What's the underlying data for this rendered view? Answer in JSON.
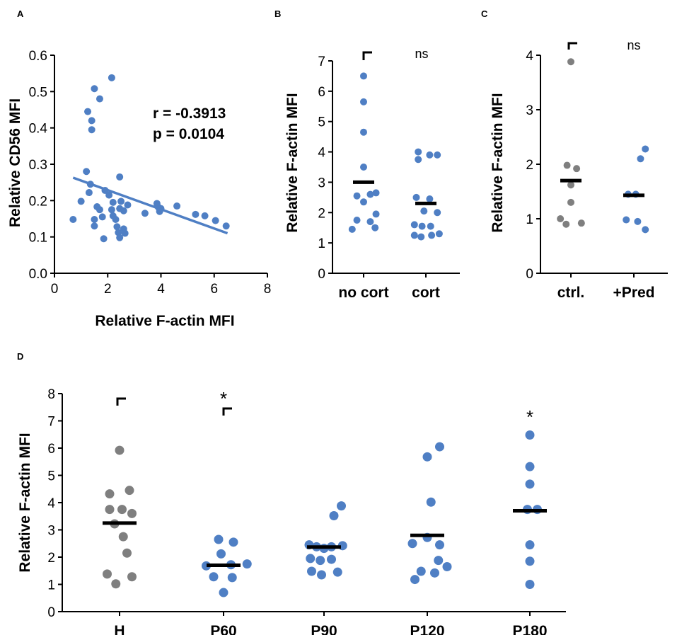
{
  "colors": {
    "blue": "#4f7fc4",
    "gray": "#7f7f7f",
    "line": "#4f7fc4",
    "axis": "#000000"
  },
  "chart_data": [
    {
      "panel": "A",
      "type": "scatter",
      "xlabel": "Relative F-actin MFI",
      "ylabel": "Relative CD56 MFI",
      "xlim": [
        0,
        8
      ],
      "ylim": [
        0,
        0.6
      ],
      "xticks": [
        "0",
        "2",
        "4",
        "6",
        "8"
      ],
      "yticks": [
        "0.0",
        "0.1",
        "0.2",
        "0.3",
        "0.4",
        "0.5",
        "0.6"
      ],
      "annotation_r": "r = -0.3913",
      "annotation_p": "p = 0.0104",
      "regression": {
        "x": [
          0.7,
          6.5
        ],
        "y": [
          0.263,
          0.11
        ]
      },
      "points": [
        [
          0.7,
          0.148
        ],
        [
          1.0,
          0.198
        ],
        [
          1.2,
          0.28
        ],
        [
          1.3,
          0.222
        ],
        [
          1.25,
          0.445
        ],
        [
          1.4,
          0.42
        ],
        [
          1.4,
          0.395
        ],
        [
          1.5,
          0.508
        ],
        [
          1.7,
          0.48
        ],
        [
          1.35,
          0.245
        ],
        [
          1.5,
          0.148
        ],
        [
          1.5,
          0.13
        ],
        [
          1.6,
          0.183
        ],
        [
          1.7,
          0.175
        ],
        [
          1.8,
          0.155
        ],
        [
          1.85,
          0.095
        ],
        [
          1.9,
          0.228
        ],
        [
          2.05,
          0.215
        ],
        [
          2.15,
          0.538
        ],
        [
          2.2,
          0.195
        ],
        [
          2.15,
          0.175
        ],
        [
          2.2,
          0.158
        ],
        [
          2.3,
          0.148
        ],
        [
          2.35,
          0.128
        ],
        [
          2.4,
          0.112
        ],
        [
          2.45,
          0.098
        ],
        [
          2.45,
          0.265
        ],
        [
          2.5,
          0.198
        ],
        [
          2.45,
          0.178
        ],
        [
          2.6,
          0.172
        ],
        [
          2.6,
          0.122
        ],
        [
          2.75,
          0.188
        ],
        [
          2.65,
          0.11
        ],
        [
          3.4,
          0.165
        ],
        [
          3.85,
          0.192
        ],
        [
          3.9,
          0.182
        ],
        [
          4.0,
          0.178
        ],
        [
          3.95,
          0.17
        ],
        [
          4.6,
          0.185
        ],
        [
          5.3,
          0.162
        ],
        [
          5.65,
          0.158
        ],
        [
          6.05,
          0.145
        ],
        [
          6.45,
          0.13
        ]
      ]
    },
    {
      "panel": "B",
      "type": "scatter",
      "ylabel": "Relative F-actin MFI",
      "categories": [
        "no cort",
        "cort"
      ],
      "ylim": [
        0,
        7
      ],
      "yticks": [
        "0",
        "1",
        "2",
        "3",
        "4",
        "5",
        "6",
        "7"
      ],
      "significance": "ns",
      "groups": [
        {
          "name": "no cort",
          "color": "blue",
          "mean": 3.0,
          "points": [
            [
              0,
              6.5
            ],
            [
              0,
              5.65
            ],
            [
              0,
              4.65
            ],
            [
              0,
              3.5
            ],
            [
              -0.35,
              2.55
            ],
            [
              0.35,
              2.6
            ],
            [
              0.65,
              2.65
            ],
            [
              0,
              2.35
            ],
            [
              -0.35,
              1.75
            ],
            [
              0.35,
              1.7
            ],
            [
              0.65,
              1.95
            ],
            [
              -0.6,
              1.45
            ],
            [
              0.6,
              1.5
            ]
          ]
        },
        {
          "name": "cort",
          "color": "blue",
          "mean": 2.3,
          "points": [
            [
              -0.4,
              4.0
            ],
            [
              0.6,
              3.9
            ],
            [
              -0.4,
              3.75
            ],
            [
              0.2,
              3.9
            ],
            [
              -0.5,
              2.5
            ],
            [
              0.2,
              2.45
            ],
            [
              -0.1,
              2.05
            ],
            [
              0.6,
              2.0
            ],
            [
              -0.6,
              1.6
            ],
            [
              -0.2,
              1.55
            ],
            [
              0.25,
              1.55
            ],
            [
              -0.6,
              1.25
            ],
            [
              -0.25,
              1.2
            ],
            [
              0.3,
              1.25
            ],
            [
              0.7,
              1.3
            ]
          ]
        }
      ]
    },
    {
      "panel": "C",
      "type": "scatter",
      "ylabel": "Relative F-actin MFI",
      "categories": [
        "ctrl.",
        "+Pred"
      ],
      "ylim": [
        0,
        4
      ],
      "yticks": [
        "0",
        "1",
        "2",
        "3",
        "4"
      ],
      "significance": "ns",
      "groups": [
        {
          "name": "ctrl.",
          "color": "gray",
          "mean": 1.7,
          "points": [
            [
              0,
              3.88
            ],
            [
              -0.2,
              1.98
            ],
            [
              0.3,
              1.92
            ],
            [
              0,
              1.62
            ],
            [
              0,
              1.3
            ],
            [
              -0.55,
              1.0
            ],
            [
              -0.25,
              0.9
            ],
            [
              0.55,
              0.92
            ]
          ]
        },
        {
          "name": "+Pred",
          "color": "blue",
          "mean": 1.43,
          "points": [
            [
              0.6,
              2.28
            ],
            [
              0.35,
              2.1
            ],
            [
              -0.3,
              1.45
            ],
            [
              0.1,
              1.45
            ],
            [
              -0.4,
              0.98
            ],
            [
              0.2,
              0.95
            ],
            [
              0.6,
              0.8
            ]
          ]
        }
      ]
    },
    {
      "panel": "D",
      "type": "scatter",
      "ylabel": "Relative F-actin MFI",
      "categories": [
        "H",
        "P60",
        "P90",
        "P120",
        "P180"
      ],
      "ylim": [
        0,
        8
      ],
      "yticks": [
        "0",
        "1",
        "2",
        "3",
        "4",
        "5",
        "6",
        "7",
        "8"
      ],
      "star_p60": "*",
      "star_p180": "*",
      "groups": [
        {
          "name": "H",
          "color": "gray",
          "mean": 3.25,
          "points": [
            [
              0,
              5.92
            ],
            [
              -0.4,
              4.32
            ],
            [
              0.4,
              4.45
            ],
            [
              -0.4,
              3.75
            ],
            [
              0.1,
              3.75
            ],
            [
              0.5,
              3.6
            ],
            [
              -0.2,
              3.22
            ],
            [
              0.15,
              2.75
            ],
            [
              0.3,
              2.15
            ],
            [
              -0.5,
              1.38
            ],
            [
              0.5,
              1.28
            ],
            [
              -0.15,
              1.02
            ]
          ]
        },
        {
          "name": "P60",
          "color": "blue",
          "mean": 1.7,
          "points": [
            [
              -0.2,
              2.65
            ],
            [
              0.4,
              2.55
            ],
            [
              -0.1,
              2.12
            ],
            [
              -0.7,
              1.68
            ],
            [
              0.3,
              1.72
            ],
            [
              0.95,
              1.75
            ],
            [
              -0.4,
              1.28
            ],
            [
              0.35,
              1.25
            ],
            [
              0,
              0.7
            ]
          ]
        },
        {
          "name": "P90",
          "color": "blue",
          "mean": 2.37,
          "points": [
            [
              0.7,
              3.88
            ],
            [
              0.4,
              3.52
            ],
            [
              -0.6,
              2.45
            ],
            [
              -0.3,
              2.38
            ],
            [
              0,
              2.32
            ],
            [
              0.3,
              2.38
            ],
            [
              0.75,
              2.42
            ],
            [
              -0.55,
              1.95
            ],
            [
              -0.15,
              1.88
            ],
            [
              0.3,
              1.92
            ],
            [
              -0.5,
              1.48
            ],
            [
              -0.1,
              1.35
            ],
            [
              0.55,
              1.45
            ]
          ]
        },
        {
          "name": "P120",
          "color": "blue",
          "mean": 2.8,
          "points": [
            [
              0.5,
              6.05
            ],
            [
              0,
              5.68
            ],
            [
              0.15,
              4.02
            ],
            [
              0,
              2.72
            ],
            [
              -0.6,
              2.5
            ],
            [
              0.5,
              2.45
            ],
            [
              0.45,
              1.88
            ],
            [
              -0.25,
              1.48
            ],
            [
              0.3,
              1.42
            ],
            [
              0.8,
              1.65
            ],
            [
              -0.5,
              1.18
            ]
          ]
        },
        {
          "name": "P180",
          "color": "blue",
          "mean": 3.7,
          "points": [
            [
              0,
              6.48
            ],
            [
              0,
              5.32
            ],
            [
              0,
              4.68
            ],
            [
              -0.1,
              3.75
            ],
            [
              0.3,
              3.75
            ],
            [
              0,
              2.45
            ],
            [
              0,
              1.85
            ],
            [
              0,
              1.0
            ]
          ]
        }
      ]
    }
  ]
}
